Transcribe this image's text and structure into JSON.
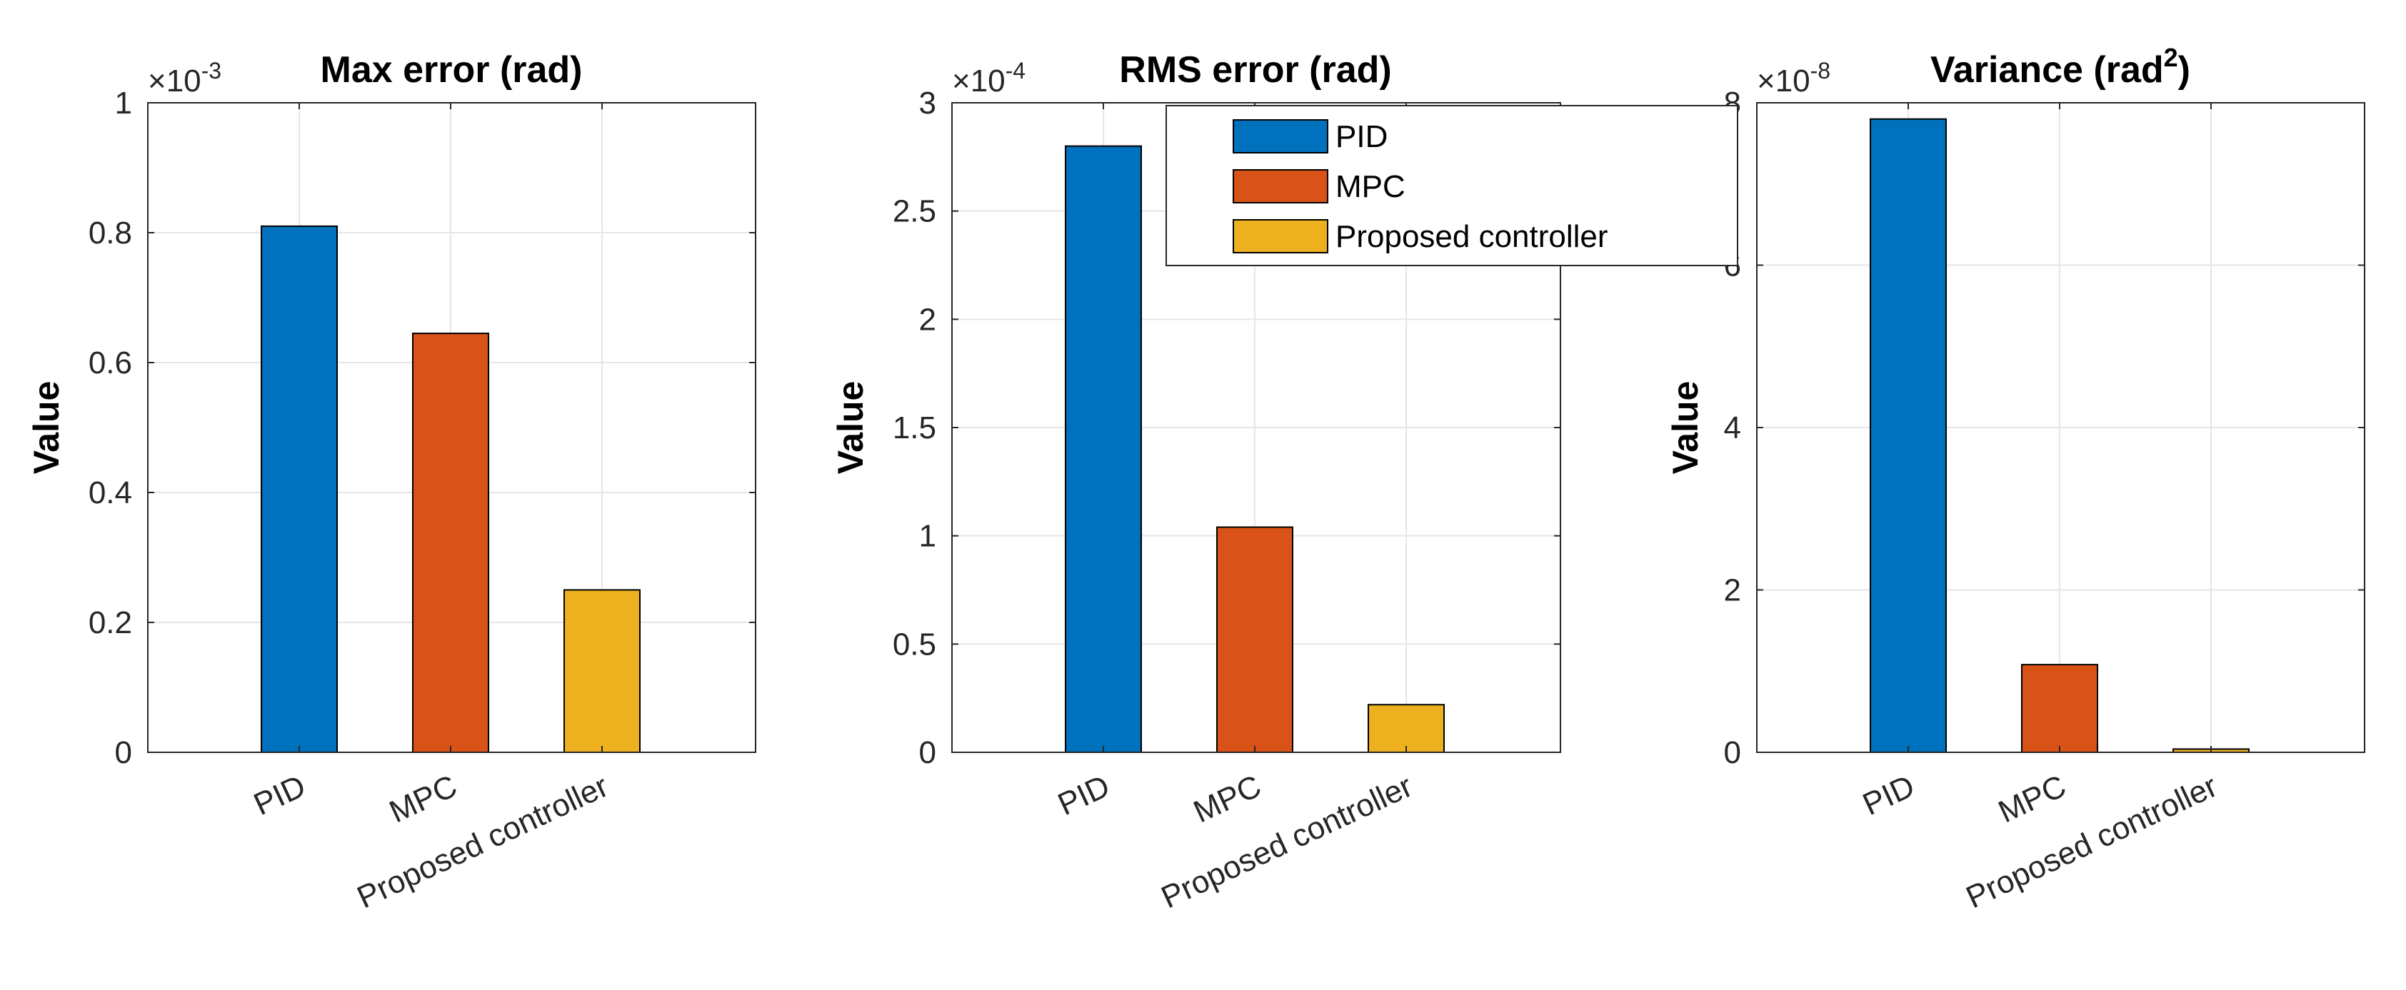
{
  "chart_data": [
    {
      "type": "bar",
      "title": "Max error (rad)",
      "ylabel": "Value",
      "xlabel": "",
      "exponent": "-3",
      "categories": [
        "PID",
        "MPC",
        "Proposed controller"
      ],
      "values": [
        0.81,
        0.645,
        0.25
      ],
      "ylim": [
        0,
        1
      ],
      "yticks": [
        "0",
        "0.2",
        "0.4",
        "0.6",
        "0.8",
        "1"
      ],
      "grid": true
    },
    {
      "type": "bar",
      "title": "RMS error (rad)",
      "ylabel": "Value",
      "xlabel": "",
      "exponent": "-4",
      "categories": [
        "PID",
        "MPC",
        "Proposed controller"
      ],
      "values": [
        2.8,
        1.04,
        0.22
      ],
      "ylim": [
        0,
        3
      ],
      "yticks": [
        "0",
        "0.5",
        "1",
        "1.5",
        "2",
        "2.5",
        "3"
      ],
      "grid": true
    },
    {
      "type": "bar",
      "title_main": "Variance (rad",
      "title_sup": "2",
      "title_end": ")",
      "ylabel": "Value",
      "xlabel": "",
      "exponent": "-8",
      "categories": [
        "PID",
        "MPC",
        "Proposed controller"
      ],
      "values": [
        7.8,
        1.08,
        0.04
      ],
      "ylim": [
        0,
        8
      ],
      "yticks": [
        "0",
        "2",
        "4",
        "6",
        "8"
      ],
      "grid": true
    }
  ],
  "legend": {
    "placement": "top-right of middle plot",
    "items": [
      "PID",
      "MPC",
      "Proposed controller"
    ]
  },
  "colors": {
    "PID": "#0072BD",
    "MPC": "#D95319",
    "Proposed controller": "#EDB120",
    "axis": "#262626",
    "grid": "#e6e6e6"
  }
}
